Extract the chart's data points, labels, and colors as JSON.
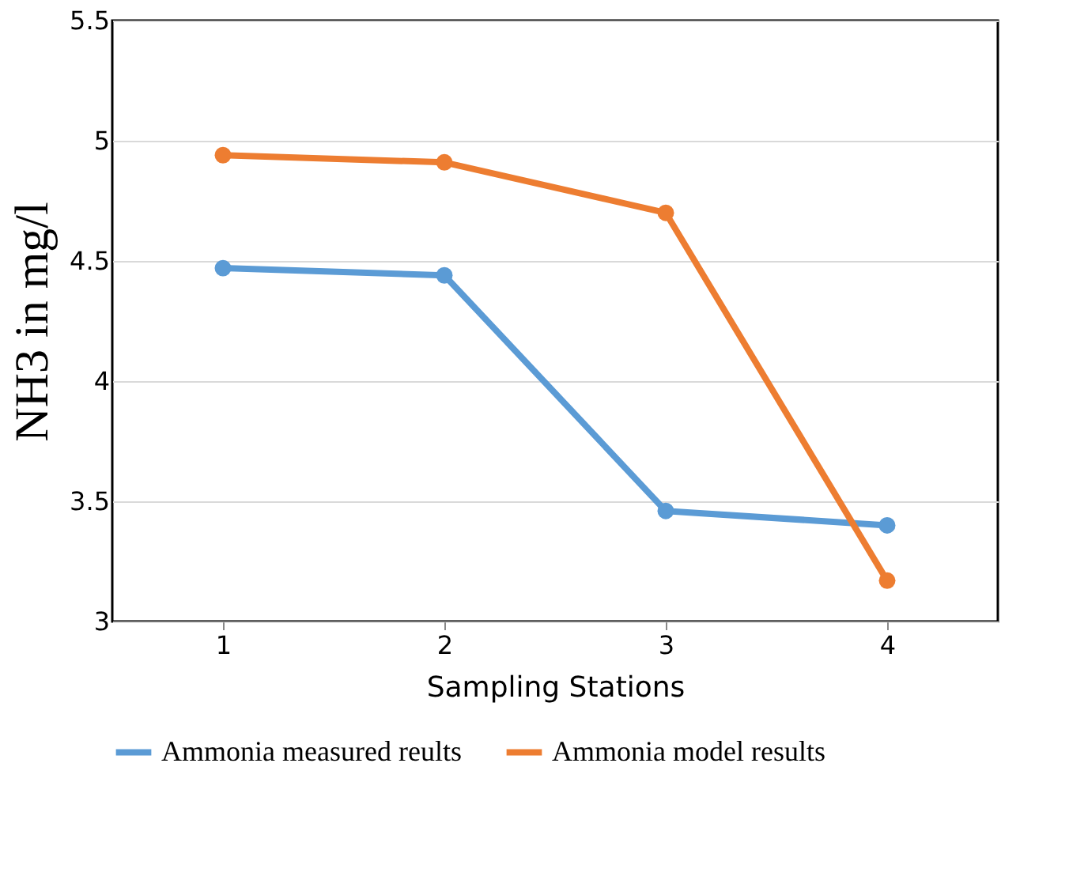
{
  "chart_data": {
    "type": "line",
    "xlabel": "Sampling Stations",
    "ylabel": "NH3 in mg/l",
    "categories": [
      "1",
      "2",
      "3",
      "4"
    ],
    "series": [
      {
        "name": "Ammonia measured reults",
        "color": "#5b9bd5",
        "values": [
          4.47,
          4.44,
          3.46,
          3.4
        ]
      },
      {
        "name": "Ammonia model results",
        "color": "#ed7d31",
        "values": [
          4.94,
          4.91,
          4.7,
          3.17
        ]
      }
    ],
    "ylim": [
      3,
      5.5
    ],
    "yticks": [
      3,
      3.5,
      4,
      4.5,
      5,
      5.5
    ],
    "grid": "y",
    "legend": "bottom",
    "marker": "circle",
    "line_style": "solid"
  }
}
